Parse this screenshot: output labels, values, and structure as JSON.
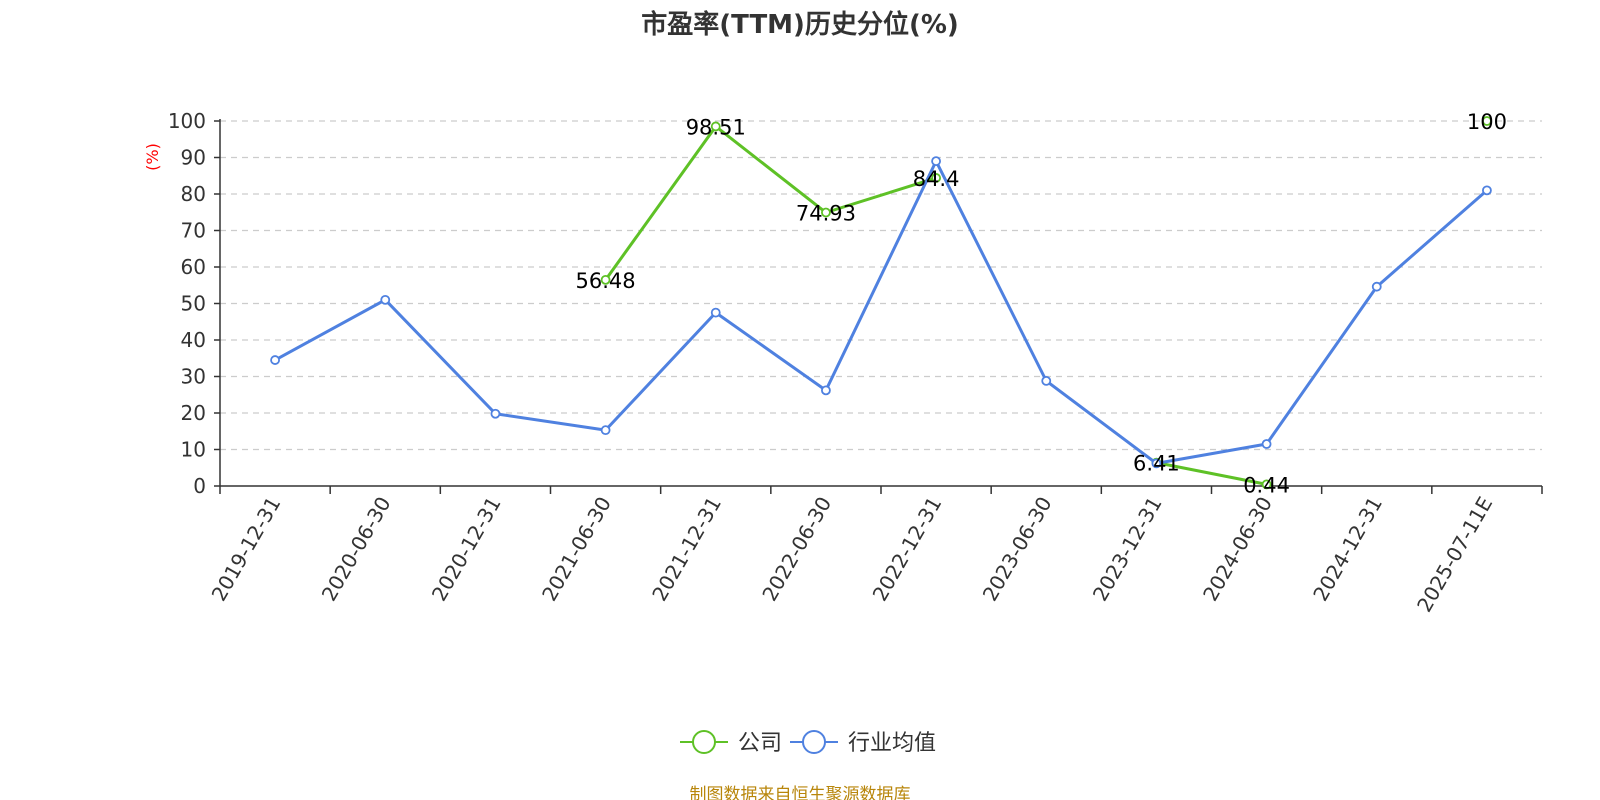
{
  "title": "市盈率(TTM)历史分位(%)",
  "source": "制图数据来自恒生聚源数据库",
  "colors": {
    "company": "#5ec126",
    "industry": "#4f81e0",
    "axis": "#333333",
    "grid": "#cccccc",
    "unit": "#ff0000"
  },
  "chart_data": {
    "type": "line",
    "title": "市盈率(TTM)历史分位(%)",
    "ylabel": "(%)",
    "ylim": [
      0,
      100
    ],
    "yticks": [
      0,
      10,
      20,
      30,
      40,
      50,
      60,
      70,
      80,
      90,
      100
    ],
    "grid": true,
    "legend_position": "bottom",
    "categories": [
      "2019-12-31",
      "2020-06-30",
      "2020-12-31",
      "2021-06-30",
      "2021-12-31",
      "2022-06-30",
      "2022-12-31",
      "2023-06-30",
      "2023-12-31",
      "2024-06-30",
      "2024-12-31",
      "2025-07-11E"
    ],
    "series": [
      {
        "name": "公司",
        "color": "#5ec126",
        "values": [
          null,
          null,
          null,
          56.48,
          98.51,
          74.93,
          84.4,
          null,
          6.41,
          0.44,
          null,
          100
        ],
        "labels": [
          "",
          "",
          "",
          "56.48",
          "98.51",
          "74.93",
          "84.4",
          "",
          "6.41",
          "0.44",
          "",
          "100"
        ]
      },
      {
        "name": "行业均值",
        "color": "#4f81e0",
        "values": [
          34.5,
          51,
          19.8,
          15.3,
          47.5,
          26.2,
          89,
          28.8,
          6.2,
          11.5,
          54.6,
          81
        ]
      }
    ]
  }
}
